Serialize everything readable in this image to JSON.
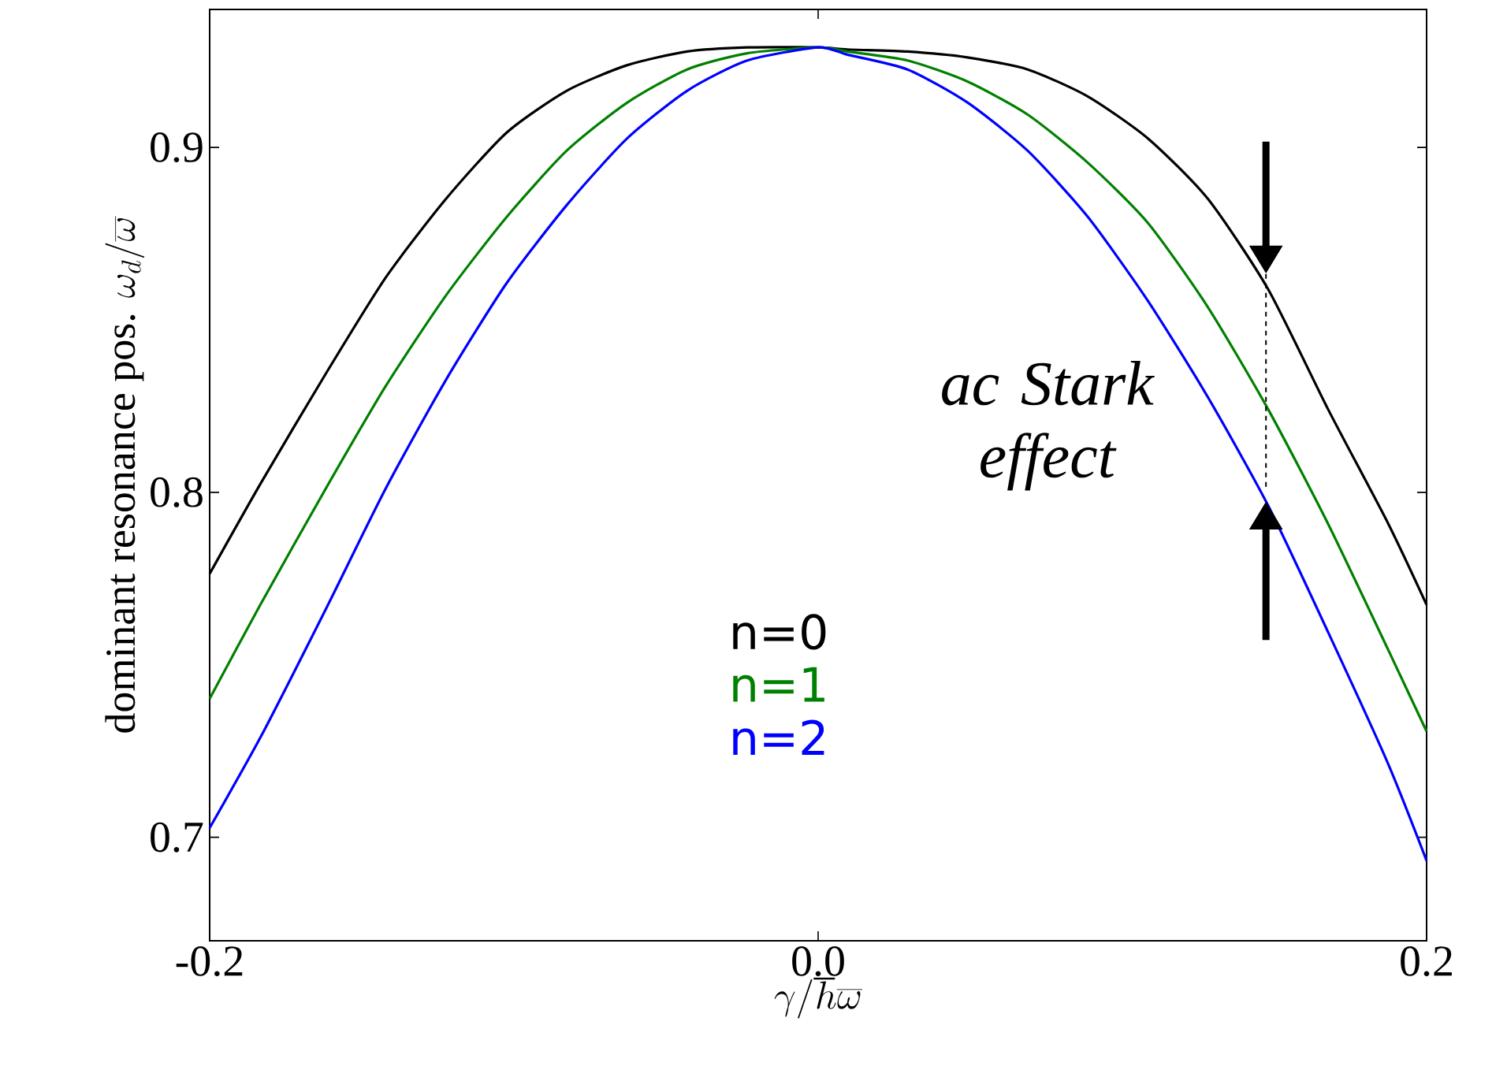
{
  "chart_data": {
    "type": "line",
    "xlabel": "\\gamma/\\hbar\\overline{\\omega}",
    "ylabel": "\\mbox{dominant resonance pos. }\\omega_d/\\overline{\\omega}",
    "xlim": [
      -0.2,
      0.2
    ],
    "ylim": [
      0.67,
      0.94
    ],
    "xticks": [
      -0.2,
      {
        "value": 0,
        "label": "0.0"
      },
      0.2
    ],
    "yticks": [
      0.7,
      0.8,
      0.9
    ],
    "legend": "center",
    "series": [
      {
        "name": "n=0",
        "color": "#000000",
        "x": [
          -0.2,
          -0.1831,
          -0.1619,
          -0.1422,
          -0.1224,
          -0.1025,
          -0.0827,
          -0.0629,
          -0.0431,
          -0.0233,
          0,
          0.0096,
          0.0294,
          0.0491,
          0.0689,
          0.0886,
          0.1084,
          0.1281,
          0.1479,
          0.1676,
          0.1874,
          0.2
        ],
        "values": [
          0.7764,
          0.8028,
          0.8343,
          0.8622,
          0.885,
          0.9042,
          0.9164,
          0.9238,
          0.9278,
          0.929,
          0.929,
          0.9284,
          0.9278,
          0.9261,
          0.9226,
          0.9148,
          0.9026,
          0.8851,
          0.8589,
          0.8241,
          0.7909,
          0.7674
        ]
      },
      {
        "name": "n=1",
        "color": "#008000",
        "x": [
          -0.2,
          -0.1831,
          -0.1619,
          -0.1422,
          -0.1224,
          -0.1025,
          -0.0827,
          -0.0629,
          -0.0431,
          -0.0233,
          0,
          0.0096,
          0.0294,
          0.0491,
          0.0689,
          0.0886,
          0.1084,
          0.1281,
          0.1479,
          0.1676,
          0.1874,
          0.2
        ],
        "values": [
          0.7402,
          0.7678,
          0.801,
          0.8307,
          0.857,
          0.8797,
          0.899,
          0.9129,
          0.9226,
          0.9273,
          0.929,
          0.9278,
          0.9252,
          0.9191,
          0.9095,
          0.8956,
          0.8781,
          0.8537,
          0.8241,
          0.7909,
          0.7543,
          0.7307
        ]
      },
      {
        "name": "n=2",
        "color": "#0000ff",
        "x": [
          -0.2,
          -0.1831,
          -0.1619,
          -0.1422,
          -0.1224,
          -0.1025,
          -0.0827,
          -0.0629,
          -0.0431,
          -0.0233,
          0,
          0.0096,
          0.0294,
          0.0491,
          0.0689,
          0.0886,
          0.1084,
          0.1281,
          0.1479,
          0.1676,
          0.1874,
          0.2
        ],
        "values": [
          0.7027,
          0.7293,
          0.766,
          0.801,
          0.8325,
          0.8605,
          0.8832,
          0.9025,
          0.9164,
          0.9252,
          0.929,
          0.9269,
          0.9226,
          0.913,
          0.899,
          0.8799,
          0.8555,
          0.8276,
          0.7962,
          0.7595,
          0.7212,
          0.6932
        ]
      }
    ],
    "annotations": [
      "ac Stark effect"
    ]
  }
}
